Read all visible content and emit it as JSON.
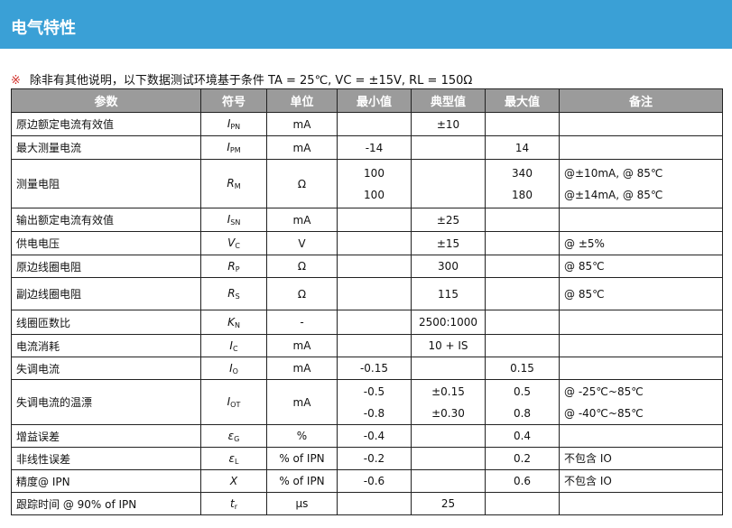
{
  "title": "电气特性",
  "note": {
    "mark": "※",
    "text": "除非有其他说明，以下数据测试环境基于条件 TA = 25℃, VC = ±15V, RL = 150Ω"
  },
  "headers": [
    "参数",
    "符号",
    "单位",
    "最小值",
    "典型值",
    "最大值",
    "备注"
  ],
  "rows": [
    {
      "param": "原边额定电流有效值",
      "sym": "I",
      "sub": "PN",
      "unit": "mA",
      "min": [
        ""
      ],
      "typ": [
        "±10"
      ],
      "max": [
        ""
      ],
      "remark": [
        ""
      ],
      "h": 26
    },
    {
      "param": "最大测量电流",
      "sym": "I",
      "sub": "PM",
      "unit": "mA",
      "min": [
        "-14"
      ],
      "typ": [
        ""
      ],
      "max": [
        "14"
      ],
      "remark": [
        ""
      ],
      "h": 26
    },
    {
      "param": "测量电阻",
      "sym": "R",
      "sub": "M",
      "unit": "Ω",
      "min": [
        "100",
        "100"
      ],
      "typ": [
        ""
      ],
      "max": [
        "340",
        "180"
      ],
      "remark": [
        "@±10mA,  @ 85℃",
        "@±14mA,  @ 85℃"
      ],
      "h": 54
    },
    {
      "param": "输出额定电流有效值",
      "sym": "I",
      "sub": "SN",
      "unit": "mA",
      "min": [
        ""
      ],
      "typ": [
        "±25"
      ],
      "max": [
        ""
      ],
      "remark": [
        ""
      ],
      "h": 26
    },
    {
      "param": "供电电压",
      "sym": "V",
      "sub": "C",
      "unit": "V",
      "min": [
        ""
      ],
      "typ": [
        "±15"
      ],
      "max": [
        ""
      ],
      "remark": [
        "@ ±5%"
      ],
      "h": 26
    },
    {
      "param": "原边线圈电阻",
      "sym": "R",
      "sub": "P",
      "unit": "Ω",
      "min": [
        ""
      ],
      "typ": [
        "300"
      ],
      "max": [
        ""
      ],
      "remark": [
        "@ 85℃"
      ],
      "h": 25
    },
    {
      "param": "副边线圈电阻",
      "sym": "R",
      "sub": "S",
      "unit": "Ω",
      "min": [
        ""
      ],
      "typ": [
        "115"
      ],
      "max": [
        ""
      ],
      "remark": [
        "@ 85℃"
      ],
      "h": 36
    },
    {
      "param": "线圈匝数比",
      "sym": "K",
      "sub": "N",
      "unit": "-",
      "min": [
        ""
      ],
      "typ": [
        "2500:1000"
      ],
      "max": [
        ""
      ],
      "remark": [
        ""
      ],
      "h": 27
    },
    {
      "param": "电流消耗",
      "sym": "I",
      "sub": "C",
      "unit": "mA",
      "min": [
        ""
      ],
      "typ": [
        "10 + IS"
      ],
      "max": [
        ""
      ],
      "remark": [
        ""
      ],
      "h": 25
    },
    {
      "param": "失调电流",
      "sym": "I",
      "sub": "O",
      "unit": "mA",
      "min": [
        "-0.15"
      ],
      "typ": [
        ""
      ],
      "max": [
        "0.15"
      ],
      "remark": [
        ""
      ],
      "h": 25
    },
    {
      "param": "失调电流的温漂",
      "sym": "I",
      "sub": "OT",
      "unit": "mA",
      "min": [
        "-0.5",
        "-0.8"
      ],
      "typ": [
        "±0.15",
        "±0.30"
      ],
      "max": [
        "0.5",
        "0.8"
      ],
      "remark": [
        "@ -25℃~85℃",
        "@ -40℃~85℃"
      ],
      "h": 50
    },
    {
      "param": "增益误差",
      "sym": "ε",
      "sub": "G",
      "unit": "%",
      "min": [
        "-0.4"
      ],
      "typ": [
        ""
      ],
      "max": [
        "0.4"
      ],
      "remark": [
        ""
      ],
      "h": 25
    },
    {
      "param": "非线性误差",
      "sym": "ε",
      "sub": "L",
      "unit": "% of IPN",
      "min": [
        "-0.2"
      ],
      "typ": [
        ""
      ],
      "max": [
        "0.2"
      ],
      "remark": [
        "不包含 IO"
      ],
      "h": 25
    },
    {
      "param": "精度@ IPN",
      "sym": "X",
      "sub": "",
      "unit": "% of IPN",
      "min": [
        "-0.6"
      ],
      "typ": [
        ""
      ],
      "max": [
        "0.6"
      ],
      "remark": [
        "不包含 IO"
      ],
      "h": 25
    },
    {
      "param": "跟踪时间  @ 90% of IPN",
      "sym": "t",
      "sub": "r",
      "unit": "µs",
      "min": [
        ""
      ],
      "typ": [
        "25"
      ],
      "max": [
        ""
      ],
      "remark": [
        ""
      ],
      "h": 25
    }
  ]
}
